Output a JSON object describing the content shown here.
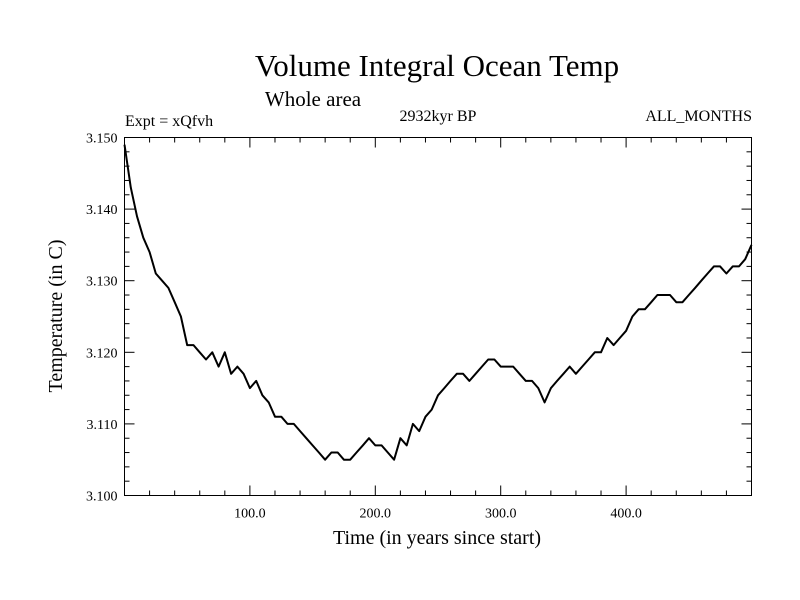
{
  "chart_data": {
    "type": "line",
    "title": "Volume Integral Ocean Temp",
    "subtitle": "Whole area",
    "annotations": {
      "left": "Expt = xQfvh",
      "center": "2932kyr BP",
      "right": "ALL_MONTHS"
    },
    "xlabel": "Time (in years since start)",
    "ylabel": "Temperature (in C)",
    "xlim": [
      0,
      500
    ],
    "ylim": [
      3.1,
      3.15
    ],
    "xticks": [
      100,
      200,
      300,
      400
    ],
    "xtick_labels": [
      "100.0",
      "200.0",
      "300.0",
      "400.0"
    ],
    "yticks": [
      3.1,
      3.11,
      3.12,
      3.13,
      3.14,
      3.15
    ],
    "ytick_labels": [
      "3.100",
      "3.110",
      "3.120",
      "3.130",
      "3.140",
      "3.150"
    ],
    "grid": false,
    "series": [
      {
        "name": "Volume integral ocean temperature",
        "x": [
          0,
          5,
          10,
          15,
          20,
          25,
          30,
          35,
          40,
          45,
          50,
          55,
          60,
          65,
          70,
          75,
          80,
          85,
          90,
          95,
          100,
          105,
          110,
          115,
          120,
          125,
          130,
          135,
          140,
          145,
          150,
          155,
          160,
          165,
          170,
          175,
          180,
          185,
          190,
          195,
          200,
          205,
          210,
          215,
          220,
          225,
          230,
          235,
          240,
          245,
          250,
          255,
          260,
          265,
          270,
          275,
          280,
          285,
          290,
          295,
          300,
          305,
          310,
          315,
          320,
          325,
          330,
          335,
          340,
          345,
          350,
          355,
          360,
          365,
          370,
          375,
          380,
          385,
          390,
          395,
          400,
          405,
          410,
          415,
          420,
          425,
          430,
          435,
          440,
          445,
          450,
          455,
          460,
          465,
          470,
          475,
          480,
          485,
          490,
          495,
          500
        ],
        "values": [
          3.149,
          3.143,
          3.139,
          3.136,
          3.134,
          3.131,
          3.13,
          3.129,
          3.127,
          3.125,
          3.121,
          3.121,
          3.12,
          3.119,
          3.12,
          3.118,
          3.12,
          3.117,
          3.118,
          3.117,
          3.115,
          3.116,
          3.114,
          3.113,
          3.111,
          3.111,
          3.11,
          3.11,
          3.109,
          3.108,
          3.107,
          3.106,
          3.105,
          3.106,
          3.106,
          3.105,
          3.105,
          3.106,
          3.107,
          3.108,
          3.107,
          3.107,
          3.106,
          3.105,
          3.108,
          3.107,
          3.11,
          3.109,
          3.111,
          3.112,
          3.114,
          3.115,
          3.116,
          3.117,
          3.117,
          3.116,
          3.117,
          3.118,
          3.119,
          3.119,
          3.118,
          3.118,
          3.118,
          3.117,
          3.116,
          3.116,
          3.115,
          3.113,
          3.115,
          3.116,
          3.117,
          3.118,
          3.117,
          3.118,
          3.119,
          3.12,
          3.12,
          3.122,
          3.121,
          3.122,
          3.123,
          3.125,
          3.126,
          3.126,
          3.127,
          3.128,
          3.128,
          3.128,
          3.127,
          3.127,
          3.128,
          3.129,
          3.13,
          3.131,
          3.132,
          3.132,
          3.131,
          3.132,
          3.132,
          3.133,
          3.135
        ]
      }
    ]
  }
}
